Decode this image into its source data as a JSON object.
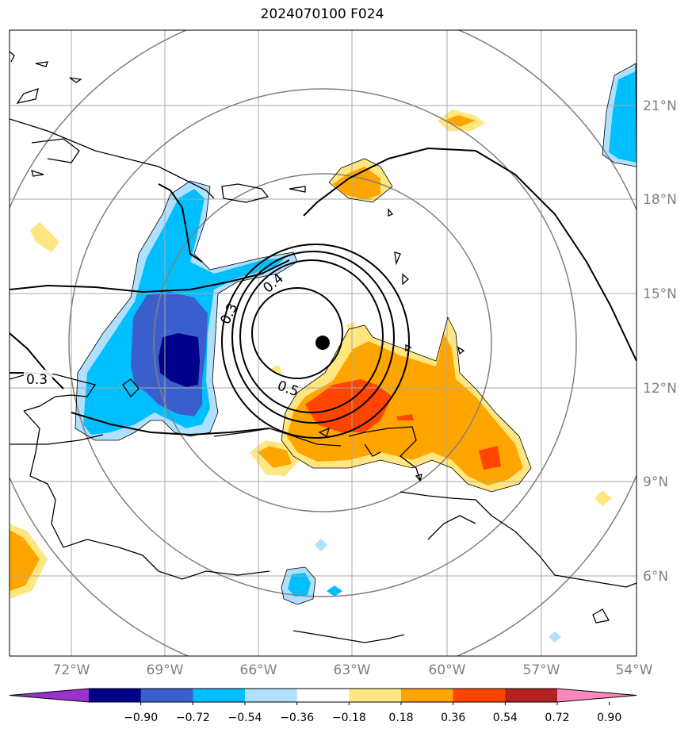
{
  "title": "2024070100 F024",
  "map": {
    "lon_labels": [
      "72°W",
      "69°W",
      "66°W",
      "63°W",
      "60°W",
      "57°W",
      "54°W"
    ],
    "lat_labels": [
      "21°N",
      "18°N",
      "15°N",
      "12°N",
      "9°N",
      "6°N"
    ],
    "contour_labels": [
      "0.3",
      "0.3",
      "0.4",
      "0.5"
    ],
    "center_marker": "storm-center"
  },
  "colorbar": {
    "ticks": [
      "−0.90",
      "−0.72",
      "−0.54",
      "−0.36",
      "−0.18",
      "0.18",
      "0.36",
      "0.54",
      "0.72",
      "0.90"
    ],
    "colors": [
      "#9932CC",
      "#00008B",
      "#3A5FCD",
      "#00BFFF",
      "#B0E0FF",
      "#FFFFFF",
      "#FFE680",
      "#FFA500",
      "#FF4500",
      "#B22222",
      "#FF88BB"
    ]
  }
}
